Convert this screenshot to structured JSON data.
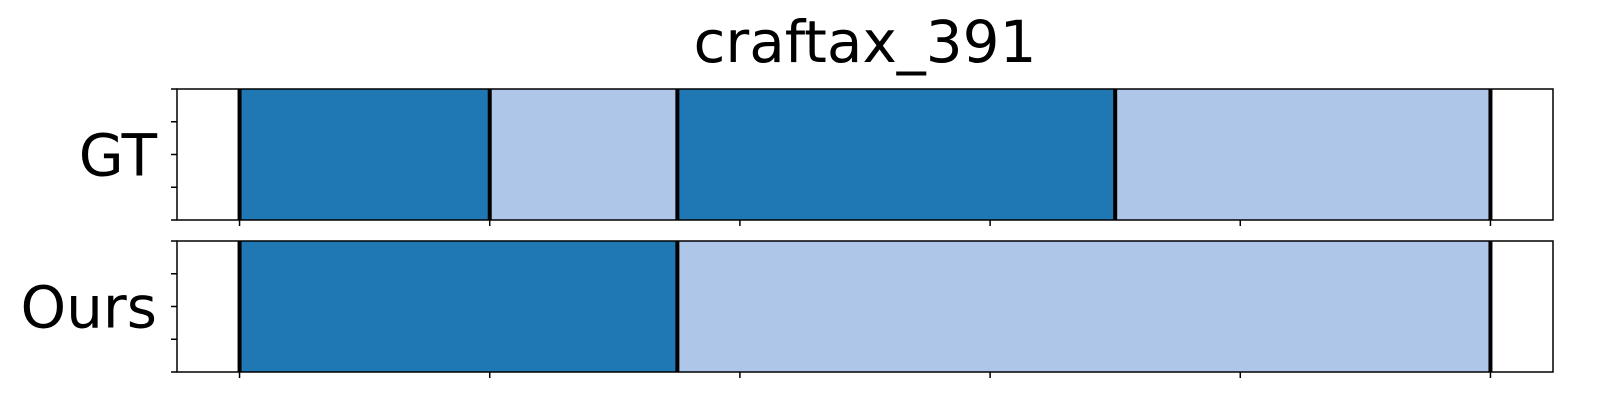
{
  "chart_data": {
    "type": "segmentation",
    "title": "craftax_391",
    "xlim": [
      0,
      1.1
    ],
    "ticks": [
      0.05,
      0.25,
      0.45,
      0.65,
      0.85,
      1.05
    ],
    "rows": [
      {
        "label": "GT",
        "segments": [
          {
            "start": 0.05,
            "end": 0.25,
            "color": "#1f77b4"
          },
          {
            "start": 0.25,
            "end": 0.4,
            "color": "#aec7e8"
          },
          {
            "start": 0.4,
            "end": 0.75,
            "color": "#1f77b4"
          },
          {
            "start": 0.75,
            "end": 1.05,
            "color": "#aec7e8"
          }
        ],
        "boundaries": [
          0.05,
          0.25,
          0.4,
          0.75,
          1.05
        ]
      },
      {
        "label": "Ours",
        "segments": [
          {
            "start": 0.05,
            "end": 0.4,
            "color": "#1f77b4"
          },
          {
            "start": 0.4,
            "end": 1.05,
            "color": "#aec7e8"
          }
        ],
        "boundaries": [
          0.05,
          0.4,
          1.05
        ]
      }
    ]
  }
}
